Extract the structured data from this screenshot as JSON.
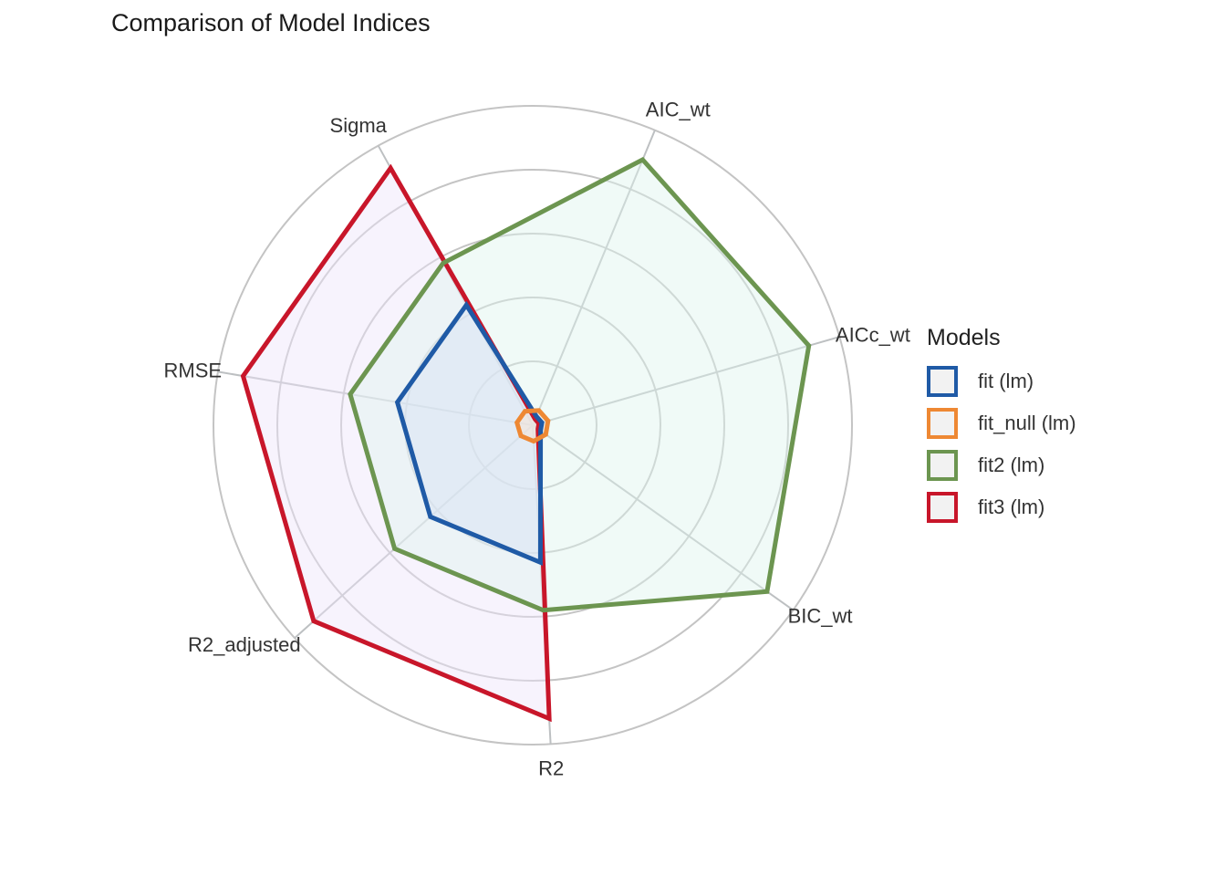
{
  "chart_data": {
    "type": "radar",
    "title": "Comparison of Model Indices",
    "axes": [
      "AIC_wt",
      "AICc_wt",
      "BIC_wt",
      "R2",
      "R2_adjusted",
      "RMSE",
      "Sigma"
    ],
    "rlim": [
      0,
      1
    ],
    "grid_levels": [
      0.2,
      0.4,
      0.6,
      0.8,
      1.0
    ],
    "grid": true,
    "legend_title": "Models",
    "legend_position": "right",
    "series": [
      {
        "name": "fit (lm)",
        "color": "#1F5AA6",
        "fill": "#D8E3F5",
        "values": [
          0.03,
          0.03,
          0.03,
          0.43,
          0.43,
          0.43,
          0.43
        ]
      },
      {
        "name": "fit_null (lm)",
        "color": "#EE8833",
        "fill": "#FBE3CF",
        "values": [
          0.05,
          0.05,
          0.05,
          0.05,
          0.05,
          0.05,
          0.05
        ]
      },
      {
        "name": "fit2 (lm)",
        "color": "#6C9550",
        "fill": "#DDF5EE",
        "values": [
          0.9,
          0.9,
          0.9,
          0.58,
          0.58,
          0.58,
          0.58
        ]
      },
      {
        "name": "fit3 (lm)",
        "color": "#C8162A",
        "fill": "#EDE4FA",
        "values": [
          0.02,
          0.02,
          0.02,
          0.92,
          0.92,
          0.92,
          0.92
        ]
      }
    ]
  }
}
